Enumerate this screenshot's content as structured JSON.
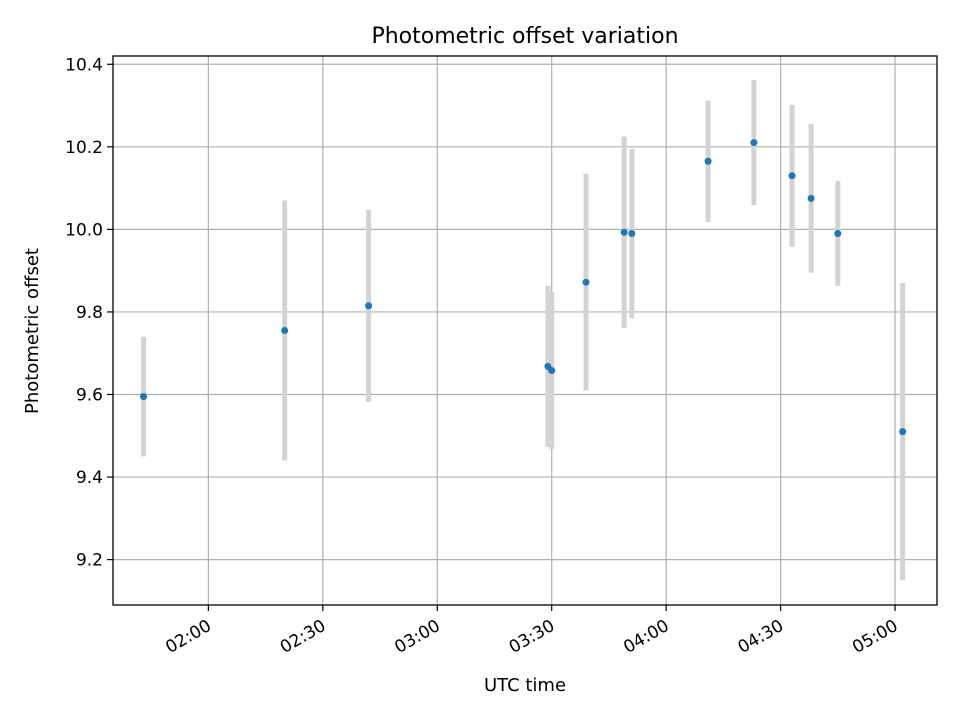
{
  "chart_data": {
    "type": "scatter",
    "title": "Photometric offset variation",
    "xlabel": "UTC time",
    "ylabel": "Photometric offset",
    "x_ticks": [
      "02:00",
      "02:30",
      "03:00",
      "03:30",
      "04:00",
      "04:30",
      "05:00"
    ],
    "y_ticks": [
      "9.2",
      "9.4",
      "9.6",
      "9.8",
      "10.0",
      "10.2",
      "10.4"
    ],
    "xlim": [
      "01:35",
      "05:11"
    ],
    "ylim": [
      9.09,
      10.42
    ],
    "grid": true,
    "marker_color": "#1f77b4",
    "errorbar_color": "#d3d3d3",
    "points": [
      {
        "time": "01:43",
        "y": 9.595,
        "err": 0.145
      },
      {
        "time": "02:20",
        "y": 9.755,
        "err": 0.315
      },
      {
        "time": "02:42",
        "y": 9.815,
        "err": 0.233
      },
      {
        "time": "03:29",
        "y": 9.668,
        "err": 0.195
      },
      {
        "time": "03:30",
        "y": 9.658,
        "err": 0.19
      },
      {
        "time": "03:39",
        "y": 9.872,
        "err": 0.262
      },
      {
        "time": "03:49",
        "y": 9.993,
        "err": 0.232
      },
      {
        "time": "03:51",
        "y": 9.99,
        "err": 0.205
      },
      {
        "time": "04:11",
        "y": 10.165,
        "err": 0.147
      },
      {
        "time": "04:23",
        "y": 10.21,
        "err": 0.152
      },
      {
        "time": "04:33",
        "y": 10.13,
        "err": 0.172
      },
      {
        "time": "04:38",
        "y": 10.075,
        "err": 0.18
      },
      {
        "time": "04:45",
        "y": 9.99,
        "err": 0.127
      },
      {
        "time": "05:02",
        "y": 9.51,
        "err": 0.36
      }
    ]
  }
}
